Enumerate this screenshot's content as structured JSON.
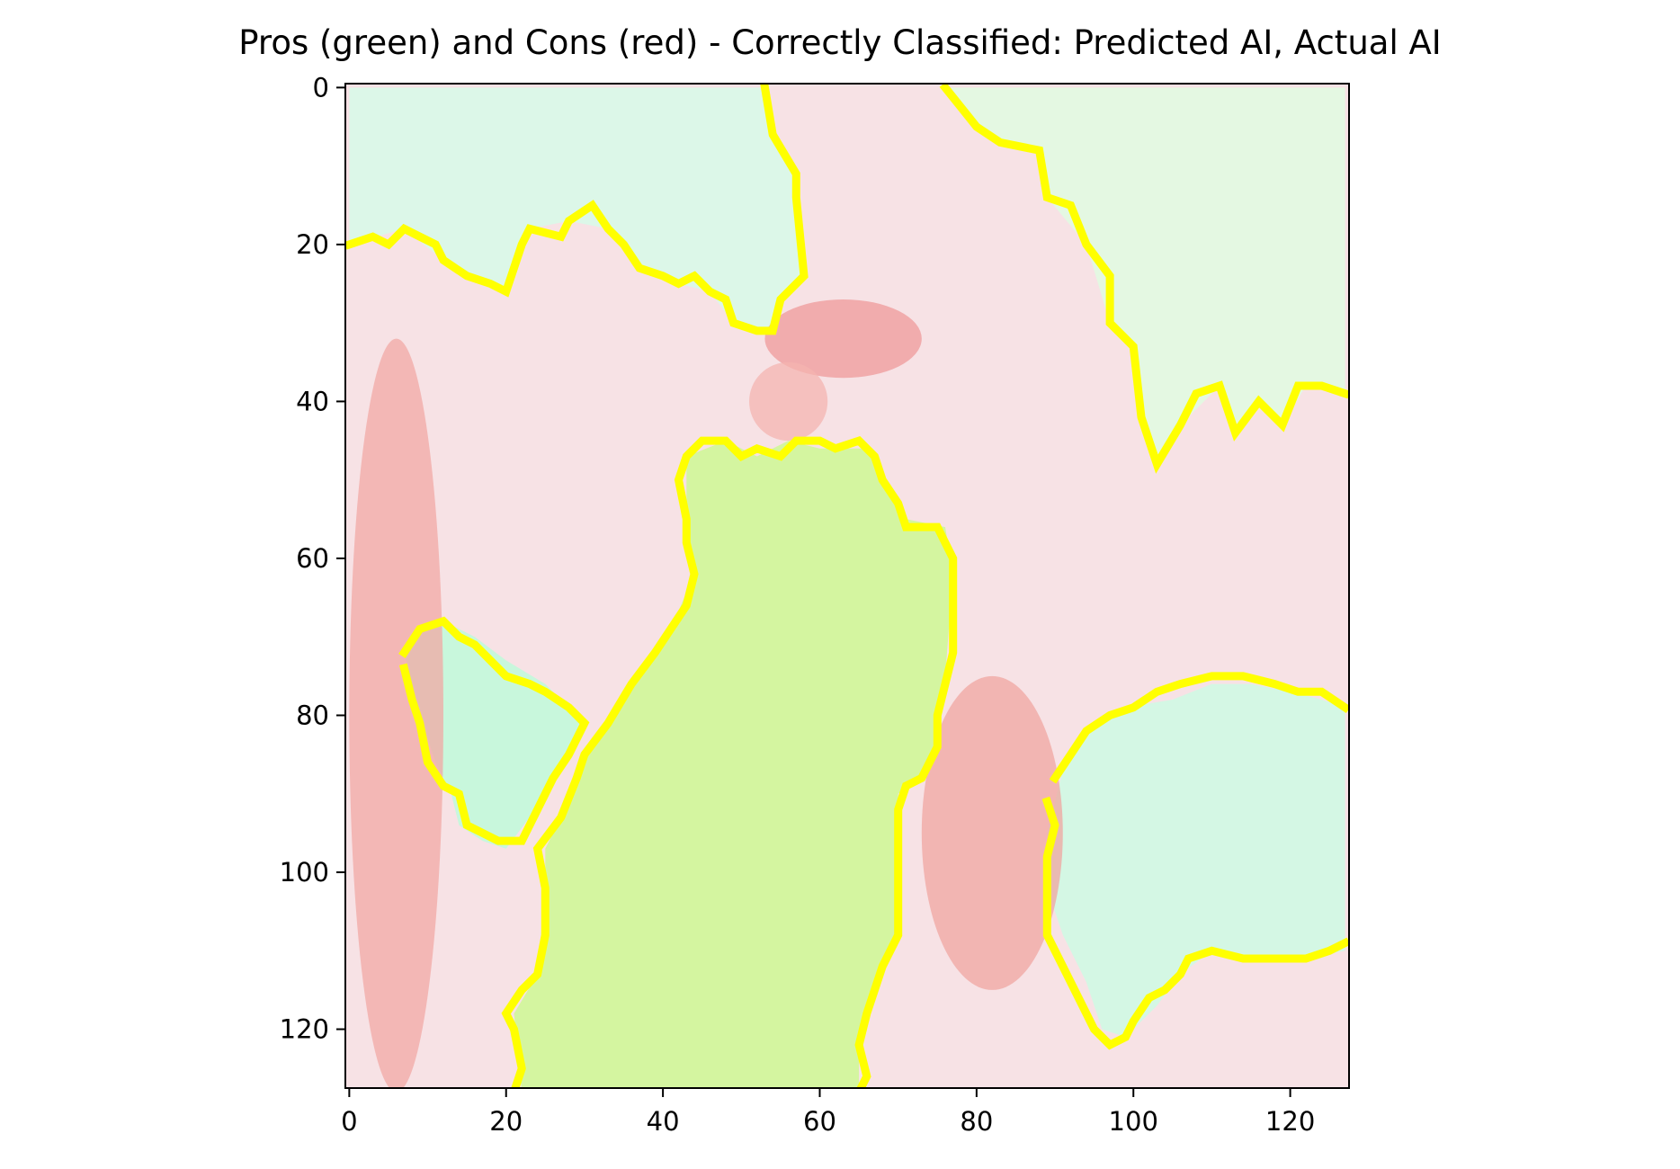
{
  "title": "Pros (green) and Cons (red) - Correctly Classified: Predicted AI, Actual AI",
  "chart_data": {
    "type": "heatmap",
    "title": "Pros (green) and Cons (red) - Correctly Classified: Predicted AI, Actual AI",
    "xlabel": "",
    "ylabel": "",
    "xlim": [
      -0.5,
      127.5
    ],
    "ylim": [
      127.5,
      -0.5
    ],
    "x_ticks": [
      0,
      20,
      40,
      60,
      80,
      100,
      120
    ],
    "y_ticks": [
      0,
      20,
      40,
      60,
      80,
      100,
      120
    ],
    "x_tick_labels": [
      "0",
      "20",
      "40",
      "60",
      "80",
      "100",
      "120"
    ],
    "y_tick_labels": [
      "0",
      "20",
      "40",
      "60",
      "80",
      "100",
      "120"
    ],
    "image_size": [
      128,
      128
    ],
    "grid": false,
    "legend": "none",
    "colors": {
      "pros": "#b8f5b0",
      "pros_light": "#dcf7e8",
      "cons": "#f3a7a3",
      "cons_light": "#f7e3e6",
      "dress": "#d4f5a0",
      "boundary": "#ffff00",
      "frame": "#000000"
    },
    "regions": [
      {
        "name": "background-upper-left",
        "class": "pros",
        "color": "#dcf7e8",
        "points": [
          [
            0,
            0
          ],
          [
            53,
            0
          ],
          [
            54,
            6
          ],
          [
            57,
            11
          ],
          [
            57,
            14
          ],
          [
            58,
            24
          ],
          [
            55,
            27
          ],
          [
            54,
            31
          ],
          [
            49,
            30
          ],
          [
            46,
            26
          ],
          [
            42,
            25
          ],
          [
            37,
            23
          ],
          [
            33,
            18
          ],
          [
            28,
            17
          ],
          [
            23,
            18
          ],
          [
            20,
            26
          ],
          [
            15,
            24
          ],
          [
            12,
            22
          ],
          [
            7,
            18
          ],
          [
            0,
            20
          ]
        ]
      },
      {
        "name": "background-upper-right",
        "class": "pros",
        "color": "#e4f8e2",
        "points": [
          [
            76,
            0
          ],
          [
            127,
            0
          ],
          [
            127,
            39
          ],
          [
            122,
            38
          ],
          [
            119,
            43
          ],
          [
            116,
            40
          ],
          [
            113,
            44
          ],
          [
            111,
            38
          ],
          [
            106,
            43
          ],
          [
            103,
            48
          ],
          [
            101,
            42
          ],
          [
            100,
            33
          ],
          [
            97,
            30
          ],
          [
            94,
            20
          ],
          [
            89,
            14
          ],
          [
            88,
            8
          ],
          [
            83,
            7
          ],
          [
            80,
            5
          ]
        ]
      },
      {
        "name": "figure-dress",
        "class": "pros",
        "color": "#d4f5a0",
        "points": [
          [
            43,
            47
          ],
          [
            48,
            45
          ],
          [
            52,
            47
          ],
          [
            56,
            45
          ],
          [
            60,
            46
          ],
          [
            66,
            46
          ],
          [
            68,
            50
          ],
          [
            71,
            55
          ],
          [
            76,
            56
          ],
          [
            77,
            62
          ],
          [
            76,
            75
          ],
          [
            75,
            84
          ],
          [
            73,
            88
          ],
          [
            70,
            90
          ],
          [
            70,
            108
          ],
          [
            67,
            115
          ],
          [
            65,
            120
          ],
          [
            65,
            128
          ],
          [
            22,
            128
          ],
          [
            21,
            118
          ],
          [
            24,
            113
          ],
          [
            25,
            102
          ],
          [
            25,
            97
          ],
          [
            27,
            93
          ],
          [
            30,
            85
          ],
          [
            36,
            76
          ],
          [
            41,
            69
          ],
          [
            44,
            62
          ],
          [
            43,
            55
          ]
        ]
      },
      {
        "name": "lower-left-patch",
        "class": "pros",
        "color": "#c8f7dc",
        "points": [
          [
            8,
            70
          ],
          [
            12,
            68
          ],
          [
            16,
            70
          ],
          [
            20,
            73
          ],
          [
            25,
            76
          ],
          [
            30,
            81
          ],
          [
            27,
            86
          ],
          [
            23,
            93
          ],
          [
            20,
            97
          ],
          [
            17,
            96
          ],
          [
            14,
            94
          ],
          [
            13,
            90
          ],
          [
            11,
            86
          ],
          [
            9,
            80
          ],
          [
            7,
            72
          ]
        ]
      },
      {
        "name": "lower-right-patch",
        "class": "pros",
        "color": "#d4f7e4",
        "points": [
          [
            94,
            82
          ],
          [
            99,
            79
          ],
          [
            105,
            78
          ],
          [
            110,
            76
          ],
          [
            115,
            76
          ],
          [
            120,
            77
          ],
          [
            124,
            78
          ],
          [
            127,
            79
          ],
          [
            127,
            110
          ],
          [
            122,
            111
          ],
          [
            116,
            111
          ],
          [
            110,
            110
          ],
          [
            106,
            113
          ],
          [
            103,
            117
          ],
          [
            99,
            121
          ],
          [
            96,
            120
          ],
          [
            94,
            114
          ],
          [
            91,
            108
          ],
          [
            89,
            102
          ],
          [
            89,
            95
          ],
          [
            90,
            91
          ],
          [
            91,
            87
          ]
        ]
      }
    ],
    "boundaries": [
      {
        "name": "boundary-upper-left",
        "points": [
          [
            0,
            20
          ],
          [
            3,
            19
          ],
          [
            5,
            20
          ],
          [
            7,
            18
          ],
          [
            9,
            19
          ],
          [
            11,
            20
          ],
          [
            12,
            22
          ],
          [
            15,
            24
          ],
          [
            18,
            25
          ],
          [
            20,
            26
          ],
          [
            22,
            20
          ],
          [
            23,
            18
          ],
          [
            27,
            19
          ],
          [
            28,
            17
          ],
          [
            31,
            15
          ],
          [
            33,
            18
          ],
          [
            35,
            20
          ],
          [
            37,
            23
          ],
          [
            40,
            24
          ],
          [
            42,
            25
          ],
          [
            44,
            24
          ],
          [
            46,
            26
          ],
          [
            48,
            27
          ],
          [
            49,
            30
          ],
          [
            52,
            31
          ],
          [
            54,
            31
          ],
          [
            55,
            27
          ],
          [
            58,
            24
          ],
          [
            57,
            14
          ],
          [
            57,
            11
          ],
          [
            54,
            6
          ],
          [
            53,
            0
          ]
        ]
      },
      {
        "name": "boundary-upper-right",
        "points": [
          [
            76,
            0
          ],
          [
            80,
            5
          ],
          [
            83,
            7
          ],
          [
            88,
            8
          ],
          [
            89,
            14
          ],
          [
            92,
            15
          ],
          [
            94,
            20
          ],
          [
            97,
            24
          ],
          [
            97,
            30
          ],
          [
            100,
            33
          ],
          [
            101,
            42
          ],
          [
            103,
            48
          ],
          [
            106,
            43
          ],
          [
            108,
            39
          ],
          [
            111,
            38
          ],
          [
            113,
            44
          ],
          [
            116,
            40
          ],
          [
            119,
            43
          ],
          [
            121,
            38
          ],
          [
            124,
            38
          ],
          [
            127,
            39
          ]
        ]
      },
      {
        "name": "boundary-dress",
        "points": [
          [
            21,
            128
          ],
          [
            22,
            125
          ],
          [
            21,
            120
          ],
          [
            20,
            118
          ],
          [
            22,
            115
          ],
          [
            24,
            113
          ],
          [
            25,
            108
          ],
          [
            25,
            102
          ],
          [
            24,
            97
          ],
          [
            27,
            93
          ],
          [
            29,
            88
          ],
          [
            30,
            85
          ],
          [
            33,
            81
          ],
          [
            36,
            76
          ],
          [
            39,
            72
          ],
          [
            41,
            69
          ],
          [
            43,
            66
          ],
          [
            44,
            62
          ],
          [
            43,
            58
          ],
          [
            43,
            55
          ],
          [
            42,
            50
          ],
          [
            43,
            47
          ],
          [
            45,
            45
          ],
          [
            48,
            45
          ],
          [
            50,
            47
          ],
          [
            52,
            46
          ],
          [
            55,
            47
          ],
          [
            57,
            45
          ],
          [
            60,
            45
          ],
          [
            62,
            46
          ],
          [
            65,
            45
          ],
          [
            67,
            47
          ],
          [
            68,
            50
          ],
          [
            70,
            53
          ],
          [
            71,
            56
          ],
          [
            75,
            56
          ],
          [
            77,
            60
          ],
          [
            77,
            65
          ],
          [
            77,
            72
          ],
          [
            76,
            76
          ],
          [
            75,
            80
          ],
          [
            75,
            84
          ],
          [
            73,
            88
          ],
          [
            71,
            89
          ],
          [
            70,
            92
          ],
          [
            70,
            100
          ],
          [
            70,
            108
          ],
          [
            68,
            112
          ],
          [
            67,
            115
          ],
          [
            66,
            118
          ],
          [
            65,
            122
          ],
          [
            66,
            126
          ],
          [
            65,
            128
          ]
        ]
      },
      {
        "name": "boundary-lower-left",
        "points": [
          [
            7,
            72
          ],
          [
            9,
            69
          ],
          [
            12,
            68
          ],
          [
            14,
            70
          ],
          [
            16,
            71
          ],
          [
            18,
            73
          ],
          [
            20,
            75
          ],
          [
            23,
            76
          ],
          [
            25,
            77
          ],
          [
            28,
            79
          ],
          [
            30,
            81
          ],
          [
            28,
            85
          ],
          [
            26,
            88
          ],
          [
            24,
            92
          ],
          [
            22,
            96
          ],
          [
            19,
            96
          ],
          [
            17,
            95
          ],
          [
            15,
            94
          ],
          [
            14,
            90
          ],
          [
            12,
            89
          ],
          [
            10,
            86
          ],
          [
            9,
            81
          ],
          [
            8,
            78
          ],
          [
            7,
            74
          ]
        ]
      },
      {
        "name": "boundary-lower-right",
        "points": [
          [
            90,
            88
          ],
          [
            92,
            85
          ],
          [
            94,
            82
          ],
          [
            97,
            80
          ],
          [
            100,
            79
          ],
          [
            103,
            77
          ],
          [
            106,
            76
          ],
          [
            110,
            75
          ],
          [
            114,
            75
          ],
          [
            118,
            76
          ],
          [
            121,
            77
          ],
          [
            124,
            77
          ],
          [
            127,
            79
          ]
        ]
      },
      {
        "name": "boundary-lower-right-lower",
        "points": [
          [
            127,
            109
          ],
          [
            125,
            110
          ],
          [
            122,
            111
          ],
          [
            118,
            111
          ],
          [
            114,
            111
          ],
          [
            110,
            110
          ],
          [
            107,
            111
          ],
          [
            106,
            113
          ],
          [
            104,
            115
          ],
          [
            102,
            116
          ],
          [
            100,
            119
          ],
          [
            99,
            121
          ],
          [
            97,
            122
          ],
          [
            95,
            120
          ],
          [
            93,
            116
          ],
          [
            91,
            112
          ],
          [
            89,
            108
          ],
          [
            89,
            103
          ],
          [
            89,
            98
          ],
          [
            90,
            94
          ],
          [
            89,
            91
          ]
        ]
      }
    ],
    "features": [
      {
        "name": "hat",
        "class": "cons",
        "color": "#ef9a9a",
        "center": [
          63,
          32
        ],
        "radius": [
          10,
          5
        ]
      },
      {
        "name": "face",
        "class": "cons",
        "color": "#f4b4b0",
        "center": [
          56,
          40
        ],
        "radius": [
          5,
          5
        ]
      },
      {
        "name": "child-figure",
        "class": "cons",
        "color": "#f0a5a0",
        "center": [
          82,
          95
        ],
        "radius": [
          9,
          20
        ]
      },
      {
        "name": "left-tree-trunk",
        "class": "cons",
        "color": "#f2a8a4",
        "center": [
          6,
          80
        ],
        "radius": [
          6,
          48
        ]
      }
    ]
  }
}
